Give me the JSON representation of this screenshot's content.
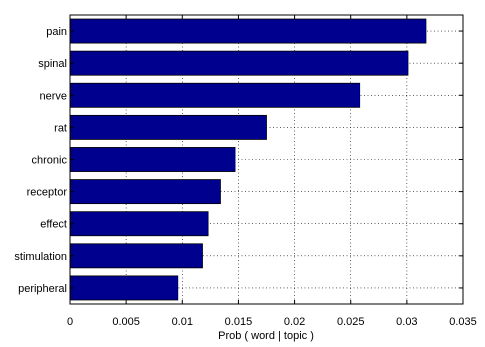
{
  "chart_data": {
    "type": "bar",
    "orientation": "horizontal",
    "categories": [
      "pain",
      "spinal",
      "nerve",
      "rat",
      "chronic",
      "receptor",
      "effect",
      "stimulation",
      "peripheral"
    ],
    "values": [
      0.0317,
      0.0301,
      0.0258,
      0.0175,
      0.0147,
      0.0134,
      0.0123,
      0.0118,
      0.0096
    ],
    "title": "",
    "xlabel": "Prob ( word | topic )",
    "ylabel": "",
    "xlim": [
      0,
      0.035
    ],
    "xticks": [
      "0",
      "0.005",
      "0.01",
      "0.015",
      "0.02",
      "0.025",
      "0.03",
      "0.035"
    ],
    "grid": true,
    "bar_color": "#00008f"
  }
}
